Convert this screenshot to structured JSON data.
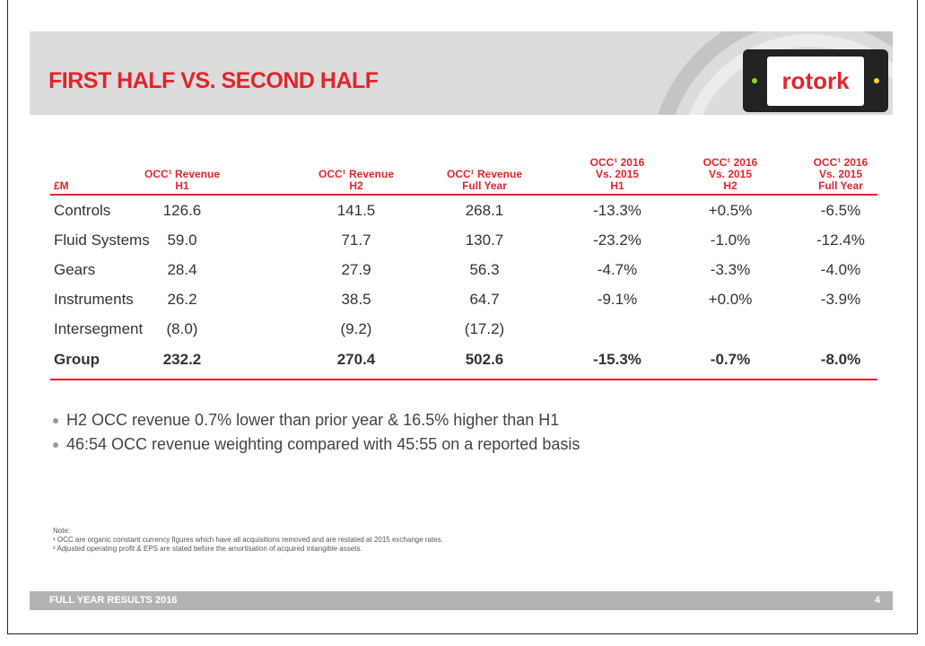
{
  "header": {
    "title": "FIRST HALF VS. SECOND HALF",
    "logo": "rotork"
  },
  "table": {
    "columns": [
      [
        "£M"
      ],
      [
        "OCC¹ Revenue",
        "H1"
      ],
      [
        "OCC¹ Revenue",
        "H2"
      ],
      [
        "OCC¹ Revenue",
        "Full Year"
      ],
      [
        "OCC¹ 2016",
        "Vs. 2015",
        "H1"
      ],
      [
        "OCC¹ 2016",
        "Vs. 2015",
        "H2"
      ],
      [
        "OCC¹ 2016",
        "Vs. 2015",
        "Full Year"
      ]
    ],
    "rows": [
      [
        "Controls",
        "126.6",
        "141.5",
        "268.1",
        "-13.3%",
        "+0.5%",
        "-6.5%"
      ],
      [
        "Fluid Systems",
        "59.0",
        "71.7",
        "130.7",
        "-23.2%",
        "-1.0%",
        "-12.4%"
      ],
      [
        "Gears",
        "28.4",
        "27.9",
        "56.3",
        "-4.7%",
        "-3.3%",
        "-4.0%"
      ],
      [
        "Instruments",
        "26.2",
        "38.5",
        "64.7",
        "-9.1%",
        "+0.0%",
        "-3.9%"
      ],
      [
        "Intersegment",
        "(8.0)",
        "(9.2)",
        "(17.2)"
      ],
      [
        "Group",
        "232.2",
        "270.4",
        "502.6",
        "-15.3%",
        "-0.7%",
        "-8.0%"
      ]
    ]
  },
  "bullets": [
    "H2 OCC revenue 0.7% lower than prior year & 16.5% higher than H1",
    "46:54 OCC revenue weighting compared with 45:55 on a reported basis"
  ],
  "notes": [
    "Note:",
    "¹ OCC are organic constant currency figures which have all acquisitions removed and are restated at 2015 exchange rates.",
    "² Adjusted operating profit & EPS are stated before the amortisation of acquired intangible assets."
  ],
  "footer": {
    "text": "FULL YEAR RESULTS 2016",
    "page": "4"
  }
}
